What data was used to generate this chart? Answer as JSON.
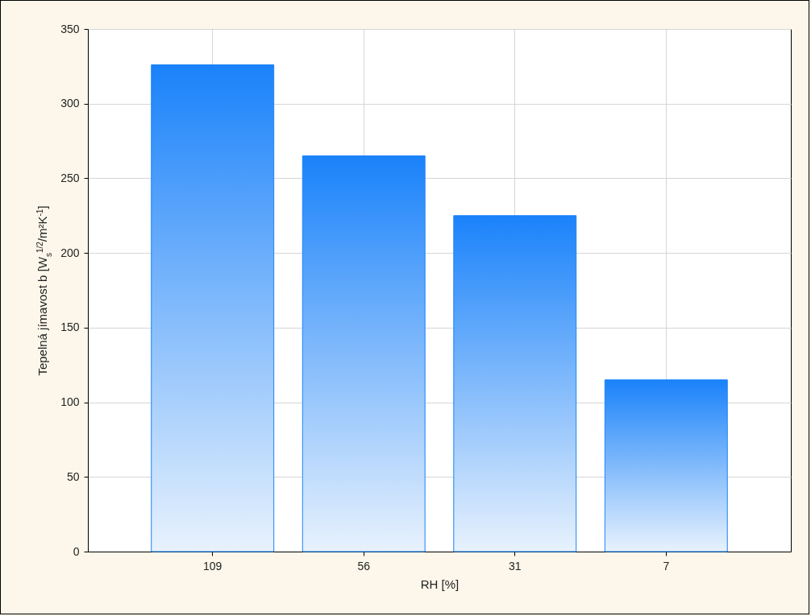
{
  "chart_data": {
    "type": "bar",
    "xlabel": "RH [%]",
    "ylabel": "Tepelná jímavost b [W$_{s}$$^{1/2}$/m²K$^{-1}$]",
    "categories": [
      "109",
      "56",
      "31",
      "7"
    ],
    "values": [
      326,
      265,
      225,
      115
    ],
    "color": "#1a82fa",
    "ylim": [
      0,
      350
    ],
    "yticks": [
      0,
      50,
      100,
      150,
      200,
      250,
      300,
      350
    ],
    "grid": true
  }
}
